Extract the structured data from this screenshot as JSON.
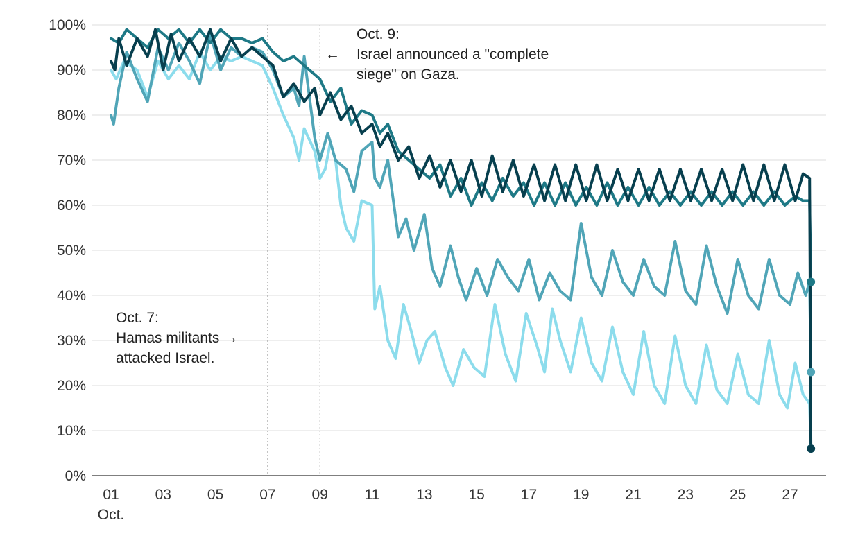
{
  "chart_data": {
    "type": "line",
    "title": "",
    "xlabel": "",
    "ylabel": "",
    "x_unit_note": "day of October (fractional)",
    "x_ticks": [
      "01",
      "03",
      "05",
      "07",
      "09",
      "11",
      "13",
      "15",
      "17",
      "19",
      "21",
      "23",
      "25",
      "27"
    ],
    "x_ticks_values": [
      1,
      3,
      5,
      7,
      9,
      11,
      13,
      15,
      17,
      19,
      21,
      23,
      25,
      27
    ],
    "x_month_label": "Oct.",
    "xlim": [
      1,
      28.5
    ],
    "y_ticks": [
      "0%",
      "10%",
      "20%",
      "30%",
      "40%",
      "50%",
      "60%",
      "70%",
      "80%",
      "90%",
      "100%"
    ],
    "y_ticks_values": [
      0,
      10,
      20,
      30,
      40,
      50,
      60,
      70,
      80,
      90,
      100
    ],
    "ylim": [
      0,
      100
    ],
    "grid": true,
    "legend": "none",
    "reference_lines": [
      {
        "x": 7,
        "style": "dotted"
      },
      {
        "x": 9,
        "style": "dotted"
      }
    ],
    "annotations": [
      {
        "id": "oct7",
        "lines": [
          "Oct. 7:",
          "Hamas militants",
          "attacked Israel."
        ],
        "arrow": "→"
      },
      {
        "id": "oct9",
        "lines": [
          "Oct. 9:",
          "Israel announced a \"complete",
          "siege\" on Gaza."
        ],
        "arrow": "←"
      }
    ],
    "series": [
      {
        "color": "#8cdcec",
        "end_value": 6,
        "points": [
          [
            1.0,
            90
          ],
          [
            1.2,
            88
          ],
          [
            1.5,
            92
          ],
          [
            2.0,
            90
          ],
          [
            2.4,
            84
          ],
          [
            2.8,
            92
          ],
          [
            3.2,
            88
          ],
          [
            3.6,
            91
          ],
          [
            4.0,
            88
          ],
          [
            4.4,
            94
          ],
          [
            4.8,
            90
          ],
          [
            5.2,
            93
          ],
          [
            5.6,
            92
          ],
          [
            6.0,
            93
          ],
          [
            6.4,
            92
          ],
          [
            6.8,
            91
          ],
          [
            7.2,
            86
          ],
          [
            7.6,
            80
          ],
          [
            8.0,
            75
          ],
          [
            8.2,
            70
          ],
          [
            8.4,
            77
          ],
          [
            8.8,
            72
          ],
          [
            9.0,
            66
          ],
          [
            9.2,
            68
          ],
          [
            9.4,
            74
          ],
          [
            9.6,
            70
          ],
          [
            9.8,
            60
          ],
          [
            10.0,
            55
          ],
          [
            10.3,
            52
          ],
          [
            10.6,
            61
          ],
          [
            11.0,
            60
          ],
          [
            11.1,
            37
          ],
          [
            11.3,
            42
          ],
          [
            11.6,
            30
          ],
          [
            11.9,
            26
          ],
          [
            12.2,
            38
          ],
          [
            12.5,
            32
          ],
          [
            12.8,
            25
          ],
          [
            13.1,
            30
          ],
          [
            13.4,
            32
          ],
          [
            13.8,
            24
          ],
          [
            14.1,
            20
          ],
          [
            14.5,
            28
          ],
          [
            14.9,
            24
          ],
          [
            15.3,
            22
          ],
          [
            15.7,
            38
          ],
          [
            16.1,
            27
          ],
          [
            16.5,
            21
          ],
          [
            16.9,
            36
          ],
          [
            17.3,
            29
          ],
          [
            17.6,
            23
          ],
          [
            17.9,
            37
          ],
          [
            18.2,
            30
          ],
          [
            18.6,
            23
          ],
          [
            19.0,
            35
          ],
          [
            19.4,
            25
          ],
          [
            19.8,
            21
          ],
          [
            20.2,
            33
          ],
          [
            20.6,
            23
          ],
          [
            21.0,
            18
          ],
          [
            21.4,
            32
          ],
          [
            21.8,
            20
          ],
          [
            22.2,
            16
          ],
          [
            22.6,
            31
          ],
          [
            23.0,
            20
          ],
          [
            23.4,
            16
          ],
          [
            23.8,
            29
          ],
          [
            24.2,
            19
          ],
          [
            24.6,
            16
          ],
          [
            25.0,
            27
          ],
          [
            25.4,
            18
          ],
          [
            25.8,
            16
          ],
          [
            26.2,
            30
          ],
          [
            26.6,
            18
          ],
          [
            26.9,
            15
          ],
          [
            27.2,
            25
          ],
          [
            27.5,
            18
          ],
          [
            27.75,
            16
          ],
          [
            27.8,
            6
          ]
        ]
      },
      {
        "color": "#50a5b7",
        "end_value": 23,
        "points": [
          [
            1.0,
            80
          ],
          [
            1.1,
            78
          ],
          [
            1.3,
            86
          ],
          [
            1.6,
            94
          ],
          [
            2.0,
            88
          ],
          [
            2.4,
            83
          ],
          [
            2.8,
            95
          ],
          [
            3.2,
            90
          ],
          [
            3.6,
            96
          ],
          [
            4.0,
            92
          ],
          [
            4.4,
            87
          ],
          [
            4.8,
            98
          ],
          [
            5.2,
            90
          ],
          [
            5.6,
            95
          ],
          [
            6.0,
            93
          ],
          [
            6.4,
            95
          ],
          [
            6.8,
            94
          ],
          [
            7.2,
            90
          ],
          [
            7.6,
            84
          ],
          [
            8.0,
            86
          ],
          [
            8.2,
            82
          ],
          [
            8.4,
            93
          ],
          [
            8.8,
            75
          ],
          [
            9.0,
            70
          ],
          [
            9.3,
            76
          ],
          [
            9.6,
            70
          ],
          [
            10.0,
            68
          ],
          [
            10.3,
            63
          ],
          [
            10.6,
            72
          ],
          [
            11.0,
            74
          ],
          [
            11.1,
            66
          ],
          [
            11.3,
            64
          ],
          [
            11.6,
            70
          ],
          [
            12.0,
            53
          ],
          [
            12.3,
            57
          ],
          [
            12.6,
            50
          ],
          [
            13.0,
            58
          ],
          [
            13.3,
            46
          ],
          [
            13.6,
            42
          ],
          [
            14.0,
            51
          ],
          [
            14.3,
            44
          ],
          [
            14.6,
            39
          ],
          [
            15.0,
            46
          ],
          [
            15.4,
            40
          ],
          [
            15.8,
            48
          ],
          [
            16.2,
            44
          ],
          [
            16.6,
            41
          ],
          [
            17.0,
            48
          ],
          [
            17.4,
            39
          ],
          [
            17.8,
            45
          ],
          [
            18.2,
            41
          ],
          [
            18.6,
            39
          ],
          [
            19.0,
            56
          ],
          [
            19.4,
            44
          ],
          [
            19.8,
            40
          ],
          [
            20.2,
            50
          ],
          [
            20.6,
            43
          ],
          [
            21.0,
            40
          ],
          [
            21.4,
            48
          ],
          [
            21.8,
            42
          ],
          [
            22.2,
            40
          ],
          [
            22.6,
            52
          ],
          [
            23.0,
            41
          ],
          [
            23.4,
            38
          ],
          [
            23.8,
            51
          ],
          [
            24.2,
            42
          ],
          [
            24.6,
            36
          ],
          [
            25.0,
            48
          ],
          [
            25.4,
            40
          ],
          [
            25.8,
            37
          ],
          [
            26.2,
            48
          ],
          [
            26.6,
            40
          ],
          [
            27.0,
            38
          ],
          [
            27.3,
            45
          ],
          [
            27.6,
            40
          ],
          [
            27.75,
            43
          ],
          [
            27.8,
            23
          ]
        ]
      },
      {
        "color": "#1e7986",
        "end_value": 43,
        "points": [
          [
            1.0,
            97
          ],
          [
            1.3,
            96
          ],
          [
            1.6,
            99
          ],
          [
            2.0,
            97
          ],
          [
            2.4,
            95
          ],
          [
            2.8,
            99
          ],
          [
            3.2,
            97
          ],
          [
            3.6,
            99
          ],
          [
            4.0,
            96
          ],
          [
            4.4,
            99
          ],
          [
            4.8,
            96
          ],
          [
            5.2,
            99
          ],
          [
            5.6,
            97
          ],
          [
            6.0,
            97
          ],
          [
            6.4,
            96
          ],
          [
            6.8,
            97
          ],
          [
            7.2,
            94
          ],
          [
            7.6,
            92
          ],
          [
            8.0,
            93
          ],
          [
            8.4,
            91
          ],
          [
            8.8,
            89
          ],
          [
            9.0,
            88
          ],
          [
            9.4,
            83
          ],
          [
            9.8,
            86
          ],
          [
            10.2,
            78
          ],
          [
            10.6,
            81
          ],
          [
            11.0,
            80
          ],
          [
            11.3,
            76
          ],
          [
            11.6,
            78
          ],
          [
            12.0,
            72
          ],
          [
            12.4,
            70
          ],
          [
            12.8,
            68
          ],
          [
            13.2,
            66
          ],
          [
            13.6,
            69
          ],
          [
            14.0,
            62
          ],
          [
            14.4,
            66
          ],
          [
            14.8,
            60
          ],
          [
            15.2,
            65
          ],
          [
            15.6,
            61
          ],
          [
            16.0,
            66
          ],
          [
            16.4,
            62
          ],
          [
            16.8,
            65
          ],
          [
            17.2,
            60
          ],
          [
            17.6,
            65
          ],
          [
            18.0,
            60
          ],
          [
            18.4,
            65
          ],
          [
            18.8,
            60
          ],
          [
            19.2,
            64
          ],
          [
            19.6,
            60
          ],
          [
            20.0,
            65
          ],
          [
            20.4,
            60
          ],
          [
            20.8,
            64
          ],
          [
            21.2,
            60
          ],
          [
            21.6,
            64
          ],
          [
            22.0,
            60
          ],
          [
            22.4,
            63
          ],
          [
            22.8,
            60
          ],
          [
            23.2,
            63
          ],
          [
            23.6,
            60
          ],
          [
            24.0,
            63
          ],
          [
            24.4,
            60
          ],
          [
            24.8,
            63
          ],
          [
            25.2,
            60
          ],
          [
            25.6,
            63
          ],
          [
            26.0,
            60
          ],
          [
            26.4,
            63
          ],
          [
            26.8,
            60
          ],
          [
            27.2,
            62
          ],
          [
            27.5,
            61
          ],
          [
            27.75,
            61
          ],
          [
            27.8,
            43
          ]
        ]
      },
      {
        "color": "#073f4e",
        "end_value": 6,
        "points": [
          [
            1.0,
            92
          ],
          [
            1.15,
            90
          ],
          [
            1.3,
            97
          ],
          [
            1.6,
            91
          ],
          [
            2.0,
            97
          ],
          [
            2.4,
            93
          ],
          [
            2.7,
            99
          ],
          [
            3.0,
            90
          ],
          [
            3.3,
            98
          ],
          [
            3.6,
            92
          ],
          [
            4.0,
            97
          ],
          [
            4.4,
            93
          ],
          [
            4.8,
            99
          ],
          [
            5.2,
            92
          ],
          [
            5.6,
            97
          ],
          [
            6.0,
            93
          ],
          [
            6.4,
            95
          ],
          [
            6.8,
            93
          ],
          [
            7.2,
            91
          ],
          [
            7.6,
            84
          ],
          [
            8.0,
            87
          ],
          [
            8.4,
            83
          ],
          [
            8.8,
            86
          ],
          [
            9.0,
            80
          ],
          [
            9.4,
            85
          ],
          [
            9.8,
            79
          ],
          [
            10.2,
            82
          ],
          [
            10.6,
            76
          ],
          [
            11.0,
            78
          ],
          [
            11.3,
            73
          ],
          [
            11.6,
            76
          ],
          [
            12.0,
            70
          ],
          [
            12.4,
            73
          ],
          [
            12.8,
            66
          ],
          [
            13.2,
            71
          ],
          [
            13.6,
            64
          ],
          [
            14.0,
            70
          ],
          [
            14.4,
            63
          ],
          [
            14.8,
            70
          ],
          [
            15.2,
            62
          ],
          [
            15.6,
            71
          ],
          [
            16.0,
            63
          ],
          [
            16.4,
            70
          ],
          [
            16.8,
            62
          ],
          [
            17.2,
            69
          ],
          [
            17.6,
            61
          ],
          [
            18.0,
            69
          ],
          [
            18.4,
            61
          ],
          [
            18.8,
            69
          ],
          [
            19.2,
            61
          ],
          [
            19.6,
            69
          ],
          [
            20.0,
            61
          ],
          [
            20.4,
            68
          ],
          [
            20.8,
            61
          ],
          [
            21.2,
            68
          ],
          [
            21.6,
            61
          ],
          [
            22.0,
            68
          ],
          [
            22.4,
            61
          ],
          [
            22.8,
            68
          ],
          [
            23.2,
            61
          ],
          [
            23.6,
            68
          ],
          [
            24.0,
            61
          ],
          [
            24.4,
            68
          ],
          [
            24.8,
            61
          ],
          [
            25.2,
            69
          ],
          [
            25.6,
            61
          ],
          [
            26.0,
            69
          ],
          [
            26.4,
            61
          ],
          [
            26.8,
            69
          ],
          [
            27.2,
            61
          ],
          [
            27.5,
            67
          ],
          [
            27.75,
            66
          ],
          [
            27.8,
            6
          ]
        ]
      }
    ]
  }
}
